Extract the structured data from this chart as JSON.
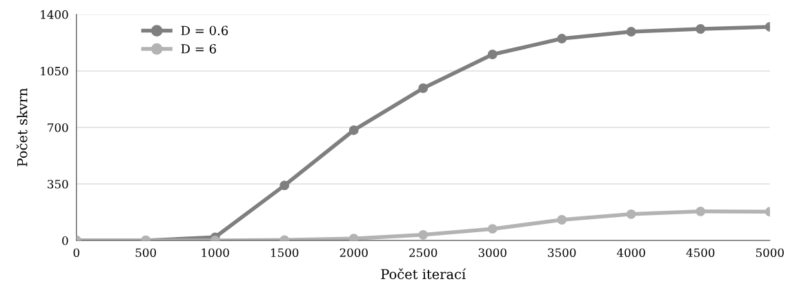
{
  "chart_data": {
    "type": "line",
    "xlabel": "Počet iterací",
    "ylabel": "Počet skvrn",
    "x": [
      0,
      500,
      1000,
      1500,
      2000,
      2500,
      3000,
      3500,
      4000,
      4500,
      5000
    ],
    "series": [
      {
        "name": "D = 0.6",
        "color": "#7f7f7f",
        "values": [
          0,
          0,
          20,
          341,
          683,
          943,
          1152,
          1250,
          1293,
          1310,
          1323
        ]
      },
      {
        "name": "D = 6",
        "color": "#b3b3b3",
        "values": [
          0,
          0,
          0,
          3,
          12,
          35,
          72,
          128,
          163,
          180,
          178
        ]
      }
    ],
    "xlim": [
      0,
      5000
    ],
    "xticks": [
      0,
      500,
      1000,
      1500,
      2000,
      2500,
      3000,
      3500,
      4000,
      4500,
      5000
    ],
    "ylim": [
      0,
      1400
    ],
    "yticks": [
      0,
      350,
      700,
      1050,
      1400
    ],
    "grid": "y",
    "legend": "top left",
    "marker": "circle",
    "line_style": "solid"
  }
}
